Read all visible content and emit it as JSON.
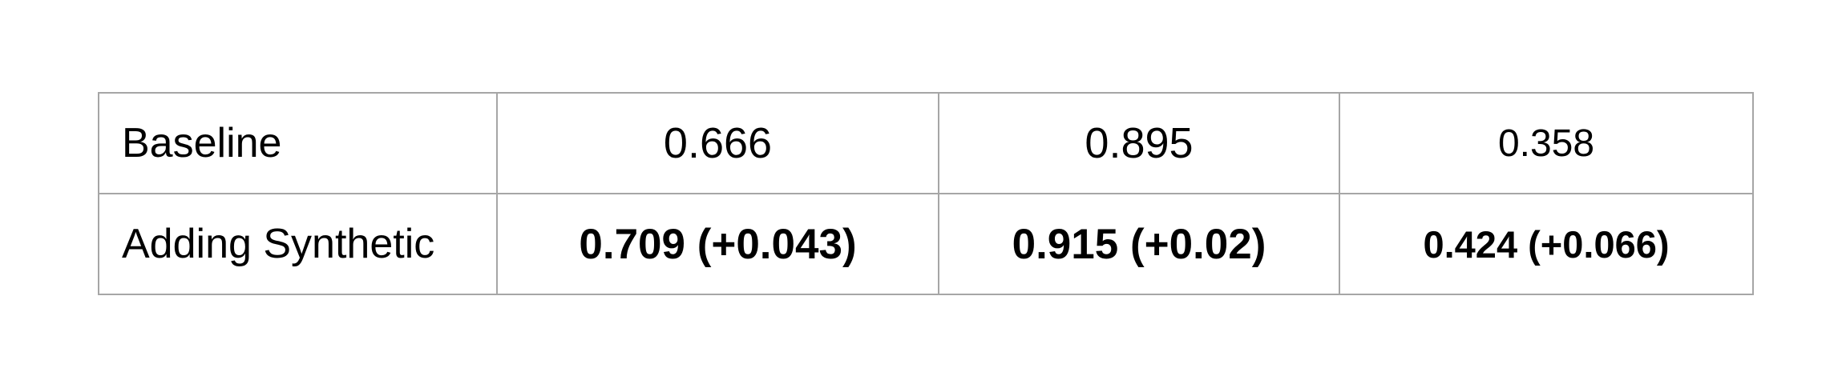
{
  "table": {
    "rows": [
      {
        "label": "Baseline",
        "values": [
          "0.666",
          "0.895",
          "0.358"
        ]
      },
      {
        "label": "Adding Synthetic",
        "values": [
          "0.709 (+0.043)",
          "0.915 (+0.02)",
          "0.424 (+0.066)"
        ],
        "bold": true
      }
    ]
  }
}
